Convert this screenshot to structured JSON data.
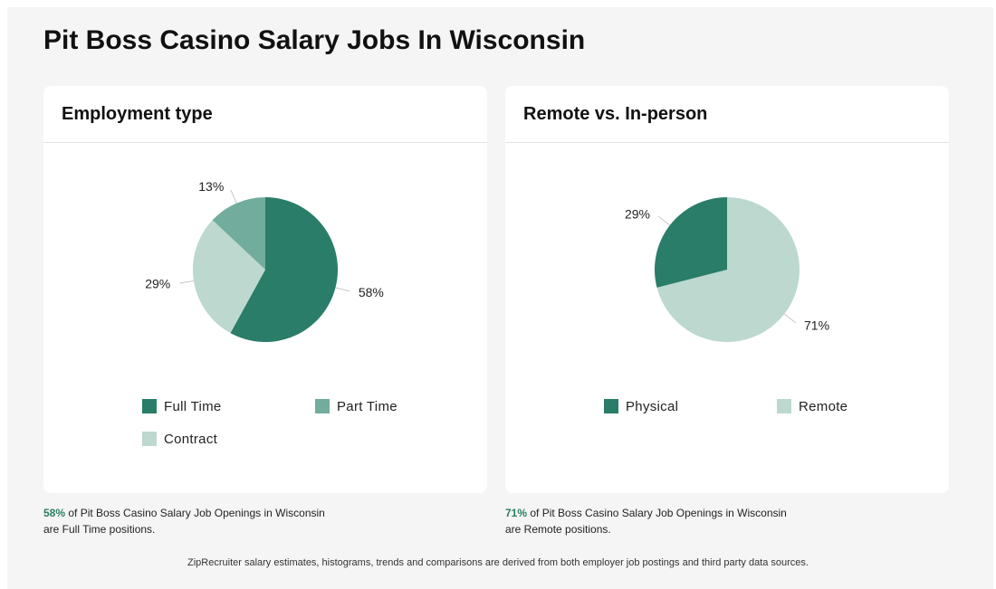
{
  "page": {
    "title": "Pit Boss Casino Salary Jobs In Wisconsin"
  },
  "colors": {
    "dark_green": "#2a7d68",
    "mid_green": "#72ac9c",
    "light_green": "#bcd8cf",
    "highlight": "#2a7d62"
  },
  "chart_data": [
    {
      "type": "pie",
      "title": "Employment type",
      "slices": [
        {
          "label": "Full Time",
          "value": 58,
          "display": "58%",
          "color": "#2a7d68"
        },
        {
          "label": "Contract",
          "value": 29,
          "display": "29%",
          "color": "#bcd8cf"
        },
        {
          "label": "Part Time",
          "value": 13,
          "display": "13%",
          "color": "#72ac9c"
        }
      ],
      "legend": [
        "Full Time",
        "Part Time",
        "Contract"
      ],
      "legend_position": "bottom"
    },
    {
      "type": "pie",
      "title": "Remote vs. In-person",
      "slices": [
        {
          "label": "Remote",
          "value": 71,
          "display": "71%",
          "color": "#bcd8cf"
        },
        {
          "label": "Physical",
          "value": 29,
          "display": "29%",
          "color": "#2a7d68"
        }
      ],
      "legend": [
        "Physical",
        "Remote"
      ],
      "legend_position": "bottom"
    }
  ],
  "captions": {
    "left": {
      "pct": "58%",
      "text1": " of Pit Boss Casino Salary Job Openings in Wisconsin",
      "text2": "are Full Time positions."
    },
    "right": {
      "pct": "71%",
      "text1": " of Pit Boss Casino Salary Job Openings in Wisconsin",
      "text2": "are Remote positions."
    }
  },
  "footer": "ZipRecruiter salary estimates, histograms, trends and comparisons are derived from both employer job postings and third party data sources."
}
